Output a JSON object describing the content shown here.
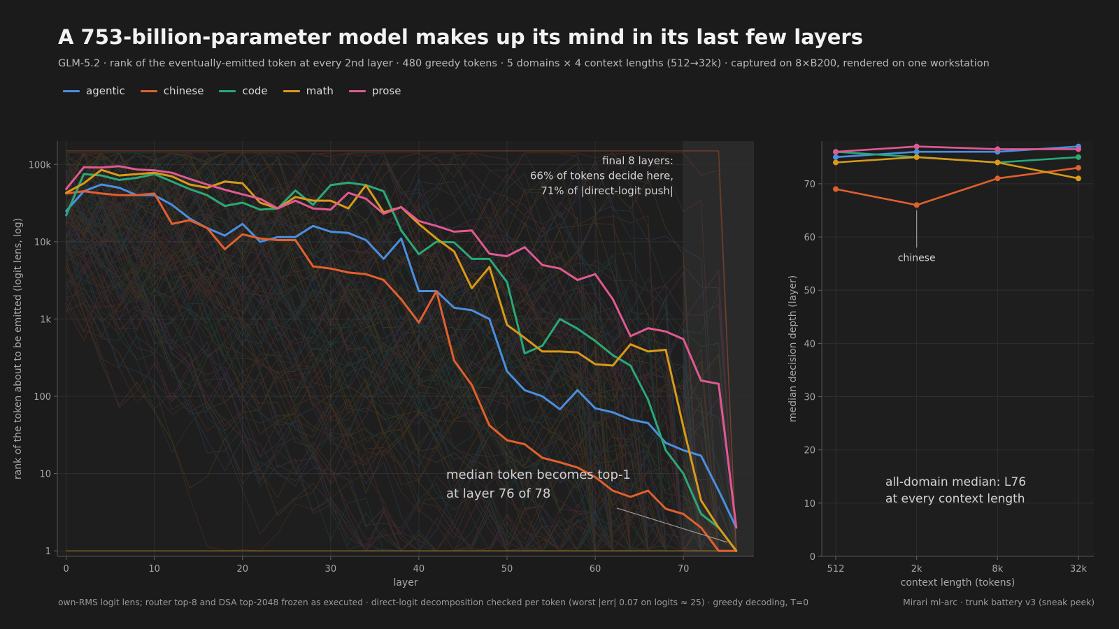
{
  "header": {
    "title": "A 753-billion-parameter model makes up its mind in its last few layers",
    "subtitle": "GLM-5.2 · rank of the eventually-emitted token at every 2nd layer · 480 greedy tokens · 5 domains × 4 context lengths (512→32k) · captured on 8×B200, rendered on one workstation"
  },
  "colors": {
    "agentic": "#4a8fe0",
    "chinese": "#e0602e",
    "code": "#2aa878",
    "math": "#d89a18",
    "prose": "#e05a92",
    "background": "#1b1b1b"
  },
  "legend": [
    {
      "name": "agentic",
      "color_key": "agentic"
    },
    {
      "name": "chinese",
      "color_key": "chinese"
    },
    {
      "name": "code",
      "color_key": "code"
    },
    {
      "name": "math",
      "color_key": "math"
    },
    {
      "name": "prose",
      "color_key": "prose"
    }
  ],
  "chart_data": [
    {
      "type": "line",
      "xlabel": "layer",
      "ylabel": "rank of the token about to be emitted    (logit lens, log)",
      "yscale": "log",
      "xlim": [
        -1,
        78
      ],
      "ylim": [
        0.85,
        200000
      ],
      "xticks": [
        0,
        10,
        20,
        30,
        40,
        50,
        60,
        70
      ],
      "xtick_labels": [
        "0",
        "10",
        "20",
        "30",
        "40",
        "50",
        "60",
        "70"
      ],
      "yticks": [
        1,
        10,
        100,
        1000,
        10000,
        100000
      ],
      "ytick_labels": [
        "1",
        "10",
        "100",
        "1k",
        "10k",
        "100k"
      ],
      "grid": true,
      "shaded_region": {
        "x_from": 70,
        "x_to": 78
      },
      "annotations": {
        "final_layers": [
          "final 8 layers:",
          "66% of tokens decide here,",
          "71% of |direct-logit push|"
        ],
        "median": [
          "median token becomes top-1",
          "at layer 76 of 78"
        ]
      },
      "x": [
        0,
        2,
        4,
        6,
        8,
        10,
        12,
        14,
        16,
        18,
        20,
        22,
        24,
        26,
        28,
        30,
        32,
        34,
        36,
        38,
        40,
        42,
        44,
        46,
        48,
        50,
        52,
        54,
        56,
        58,
        60,
        62,
        64,
        66,
        68,
        70,
        72,
        74,
        76
      ],
      "series": [
        {
          "name": "agentic",
          "values": [
            25000,
            45000,
            55000,
            50000,
            40000,
            40000,
            30000,
            20000,
            15000,
            12000,
            17000,
            10000,
            11500,
            11500,
            16000,
            13500,
            13000,
            10500,
            6000,
            11000,
            2300,
            2300,
            1400,
            1300,
            1000,
            210,
            120,
            100,
            68,
            120,
            70,
            62,
            50,
            45,
            25,
            20,
            17,
            6,
            2
          ]
        },
        {
          "name": "chinese",
          "values": [
            42000,
            45000,
            42000,
            40000,
            40000,
            42000,
            17000,
            19000,
            15000,
            8000,
            12500,
            11000,
            10500,
            10500,
            4800,
            4500,
            4000,
            3800,
            3200,
            1800,
            900,
            2300,
            290,
            140,
            42,
            27,
            24,
            16,
            14,
            12,
            9,
            6,
            5,
            6,
            3.5,
            3,
            2,
            1,
            1
          ]
        },
        {
          "name": "code",
          "values": [
            22000,
            75000,
            72000,
            63000,
            67000,
            75000,
            60000,
            48000,
            40000,
            29000,
            32000,
            26000,
            27000,
            46000,
            30000,
            54000,
            58000,
            54000,
            45000,
            14000,
            6900,
            10000,
            9800,
            6000,
            6000,
            3000,
            360,
            450,
            1000,
            750,
            520,
            340,
            250,
            90,
            20,
            10,
            3,
            2,
            1
          ]
        },
        {
          "name": "math",
          "values": [
            43000,
            57000,
            85000,
            72000,
            75000,
            78000,
            70000,
            55000,
            50000,
            60000,
            57000,
            32000,
            27000,
            38000,
            34000,
            34000,
            27000,
            54000,
            24000,
            28000,
            17000,
            11000,
            7500,
            2500,
            4700,
            840,
            570,
            380,
            380,
            370,
            260,
            250,
            470,
            380,
            400,
            40,
            4.5,
            2,
            1
          ]
        },
        {
          "name": "prose",
          "values": [
            48000,
            92000,
            91000,
            95000,
            86000,
            84000,
            78000,
            65000,
            55000,
            47000,
            41000,
            36000,
            27000,
            34000,
            27000,
            26000,
            43000,
            36000,
            23000,
            28000,
            18500,
            16000,
            13500,
            14000,
            7000,
            6500,
            8500,
            5000,
            4500,
            3200,
            3800,
            1800,
            600,
            760,
            690,
            550,
            160,
            145,
            2
          ]
        }
      ]
    },
    {
      "type": "line",
      "xlabel": "context length (tokens)",
      "ylabel": "median decision depth (layer)",
      "categories": [
        "512",
        "2k",
        "8k",
        "32k"
      ],
      "ylim": [
        0,
        78
      ],
      "yticks": [
        0,
        10,
        20,
        30,
        40,
        50,
        60,
        70
      ],
      "grid": true,
      "annotations": {
        "callout": "chinese",
        "median_note": [
          "all-domain median: L76",
          "at every context length"
        ]
      },
      "series": [
        {
          "name": "agentic",
          "values": [
            75,
            76,
            76,
            77
          ]
        },
        {
          "name": "chinese",
          "values": [
            69,
            66,
            71,
            73
          ]
        },
        {
          "name": "code",
          "values": [
            76,
            75,
            74,
            75
          ]
        },
        {
          "name": "math",
          "values": [
            74,
            75,
            74,
            71
          ]
        },
        {
          "name": "prose",
          "values": [
            76,
            77,
            76.5,
            76.5
          ]
        }
      ]
    }
  ],
  "footer": {
    "left": "own-RMS logit lens; router top-8 and DSA top-2048 frozen as executed · direct-logit decomposition checked per token (worst |err| 0.07 on logits ≈ 25) · greedy decoding, T=0",
    "right": "Mirari ml-arc · trunk battery v3 (sneak peek)"
  }
}
